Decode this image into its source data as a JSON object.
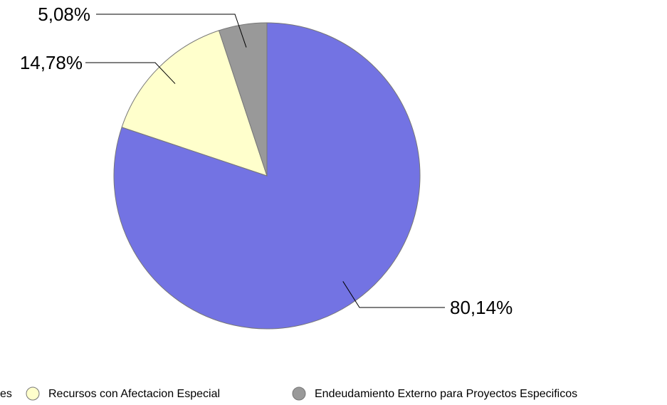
{
  "chart_data": {
    "type": "pie",
    "categories": [
      "es",
      "Recursos con Afectacion Especial",
      "Endeudamiento Externo para Proyectos Especificos"
    ],
    "values": [
      80.14,
      14.78,
      5.08
    ],
    "value_labels": [
      "80,14%",
      "14,78%",
      "5,08%"
    ],
    "colors": [
      "#7373e3",
      "#ffffcc",
      "#999999"
    ]
  }
}
